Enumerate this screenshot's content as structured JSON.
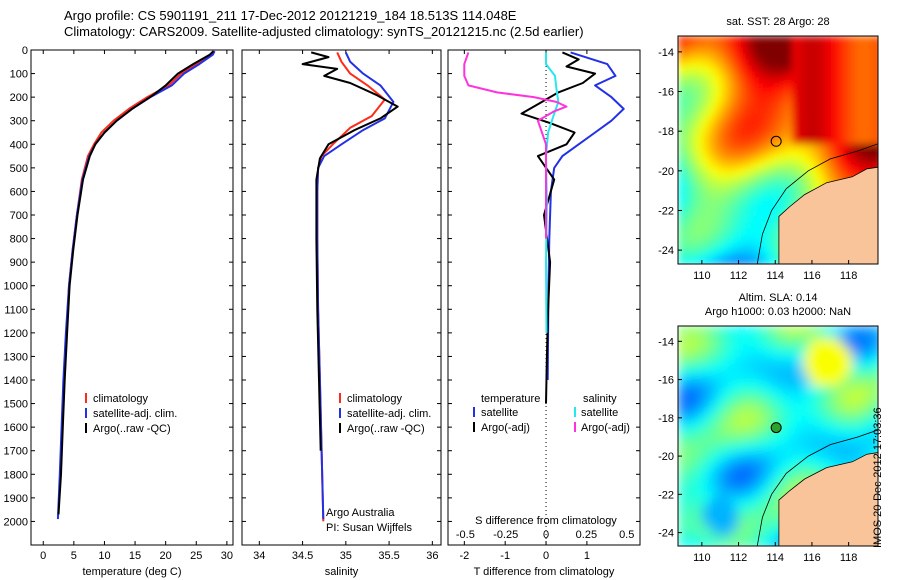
{
  "header": {
    "line1": "Argo profile: CS 5901191_211 17-Dec-2012 20121219_184 18.513S 114.048E",
    "line2": "Climatology: CARS2009. Satellite-adjusted climatology: synTS_20121215.nc (2.5d earlier)"
  },
  "stamp": "IMOS 20-Dec-2012 17:03:36",
  "colors": {
    "climatology": "#ff2a1a",
    "satellite": "#2330e6",
    "argo": "#000000",
    "argo_salinity_diff": "#ff33dd",
    "satellite_salinity_diff": "#27e6ee",
    "land": "#f9c49a",
    "axis": "#000000"
  },
  "chart_data": [
    {
      "type": "line",
      "id": "temperature",
      "xlabel": "temperature (deg C)",
      "ylabel": "",
      "xlim": [
        -2,
        31
      ],
      "ylim": [
        2100,
        0
      ],
      "xticks": [
        0,
        5,
        10,
        15,
        20,
        25,
        30
      ],
      "yticks": [
        0,
        100,
        200,
        300,
        400,
        500,
        600,
        700,
        800,
        900,
        1000,
        1100,
        1200,
        1300,
        1400,
        1500,
        1600,
        1700,
        1800,
        1900,
        2000
      ],
      "legend": [
        "climatology",
        "satellite-adj. clim.",
        "Argo(..raw -QC)"
      ],
      "legend_position": "lower-center",
      "series": [
        {
          "name": "climatology",
          "color": "#ff2a1a",
          "x": [
            28.0,
            27.3,
            25.0,
            22.5,
            20.5,
            17.0,
            14.0,
            11.5,
            9.5,
            8.3,
            7.3,
            6.3,
            5.5,
            4.8,
            4.2,
            3.8,
            3.4,
            3.1,
            2.8
          ],
          "y": [
            5,
            20,
            60,
            100,
            150,
            200,
            250,
            300,
            350,
            400,
            450,
            550,
            700,
            850,
            1000,
            1200,
            1400,
            1600,
            1800
          ]
        },
        {
          "name": "satellite-adj. clim.",
          "color": "#2330e6",
          "x": [
            28.0,
            27.7,
            25.5,
            23.0,
            21.0,
            17.5,
            14.5,
            12.0,
            10.0,
            8.5,
            7.5,
            6.4,
            5.5,
            4.8,
            4.2,
            3.7,
            3.3,
            3.0,
            2.7,
            2.4
          ],
          "y": [
            5,
            20,
            60,
            100,
            150,
            200,
            250,
            300,
            350,
            400,
            450,
            550,
            700,
            850,
            1000,
            1200,
            1400,
            1600,
            1800,
            1990
          ]
        },
        {
          "name": "Argo(..raw -QC)",
          "color": "#000000",
          "x": [
            27.8,
            27.2,
            24.5,
            22.0,
            20.0,
            18.0,
            14.5,
            12.0,
            10.0,
            8.5,
            7.6,
            6.5,
            5.6,
            4.9,
            4.3,
            3.9,
            3.5,
            3.2,
            2.9,
            2.5
          ],
          "y": [
            5,
            20,
            60,
            100,
            150,
            190,
            250,
            300,
            350,
            400,
            450,
            550,
            700,
            850,
            1000,
            1200,
            1400,
            1600,
            1800,
            1970
          ]
        }
      ]
    },
    {
      "type": "line",
      "id": "salinity",
      "xlabel": "salinity",
      "xlim": [
        33.8,
        36.1
      ],
      "ylim": [
        2100,
        0
      ],
      "xticks": [
        34,
        34.5,
        35,
        35.5,
        36
      ],
      "xtick_labels": [
        "34",
        "34.5",
        "35",
        "35.5",
        "36"
      ],
      "legend": [
        "climatology",
        "satellite-adj. clim.",
        "Argo(..raw -QC)"
      ],
      "legend_position": "lower-center",
      "annotation": [
        "Argo Australia",
        "PI: Susan Wijffels"
      ],
      "series": [
        {
          "name": "climatology",
          "color": "#ff2a1a",
          "x": [
            34.9,
            34.95,
            35.05,
            35.25,
            35.45,
            35.3,
            35.05,
            34.85,
            34.72,
            34.68,
            34.67,
            34.67,
            34.68,
            34.7,
            34.72,
            34.74
          ],
          "y": [
            10,
            50,
            100,
            150,
            210,
            280,
            330,
            400,
            450,
            500,
            600,
            800,
            1100,
            1400,
            1700,
            2000
          ]
        },
        {
          "name": "satellite-adj. clim.",
          "color": "#2330e6",
          "x": [
            35.0,
            35.05,
            35.2,
            35.4,
            35.55,
            35.45,
            35.2,
            34.95,
            34.75,
            34.68,
            34.67,
            34.67,
            34.68,
            34.7,
            34.72,
            34.74
          ],
          "y": [
            10,
            50,
            100,
            150,
            220,
            290,
            340,
            400,
            450,
            500,
            600,
            800,
            1100,
            1400,
            1700,
            1990
          ]
        },
        {
          "name": "Argo(..raw -QC)",
          "color": "#000000",
          "x": [
            34.6,
            34.8,
            34.5,
            34.9,
            34.75,
            35.05,
            35.35,
            35.6,
            35.4,
            35.1,
            34.8,
            34.7,
            34.66,
            34.66,
            34.67,
            34.69,
            34.71
          ],
          "y": [
            10,
            30,
            60,
            80,
            110,
            140,
            190,
            240,
            290,
            340,
            400,
            460,
            550,
            800,
            1100,
            1400,
            1700
          ]
        }
      ]
    },
    {
      "type": "line",
      "id": "difference",
      "xlabel": "T difference from climatology",
      "xlabel_top": "S difference from climatology",
      "xlim": [
        -2.4,
        2.3
      ],
      "ylim": [
        2100,
        0
      ],
      "xticks": [
        -2,
        -1,
        0,
        1
      ],
      "xtick_labels": [
        "-2",
        "-1",
        "0",
        "1"
      ],
      "s_xticks": [
        -0.5,
        -0.25,
        0,
        0.25,
        0.5
      ],
      "s_xtick_labels": [
        "-0.5",
        "-0.25",
        "0",
        "0.25",
        "0.5"
      ],
      "legend_left": {
        "title": "temperature",
        "items": [
          "satellite",
          "Argo(-adj)"
        ]
      },
      "legend_right": {
        "title": "salinity",
        "items": [
          "satellite",
          "Argo(-adj)"
        ]
      },
      "series": [
        {
          "name": "satellite (temperature)",
          "color": "#2330e6",
          "x": [
            0.6,
            1.5,
            1.7,
            1.2,
            1.6,
            1.9,
            1.6,
            1.2,
            0.8,
            0.4,
            0.2,
            0.12,
            0.08,
            0.06,
            0.05,
            0.04
          ],
          "y": [
            10,
            60,
            110,
            150,
            200,
            250,
            300,
            350,
            400,
            450,
            500,
            600,
            800,
            1000,
            1200,
            1400
          ]
        },
        {
          "name": "Argo(-adj) (temperature)",
          "color": "#000000",
          "x": [
            0.4,
            0.8,
            0.5,
            1.2,
            0.9,
            0.3,
            -0.2,
            -0.6,
            0.1,
            0.7,
            0.5,
            -0.2,
            0.2,
            -0.05,
            0.1,
            0.05,
            0.02,
            0.0
          ],
          "y": [
            10,
            40,
            70,
            100,
            140,
            180,
            230,
            270,
            310,
            350,
            400,
            450,
            550,
            700,
            900,
            1100,
            1300,
            1500
          ]
        },
        {
          "name": "satellite (salinity)",
          "color": "#27e6ee",
          "x": [
            0.0,
            0.0,
            0.22,
            0.25,
            0.3,
            0.18,
            0.05,
            0.0,
            0.02,
            0.0,
            0.01
          ],
          "y": [
            10,
            60,
            110,
            160,
            220,
            280,
            350,
            450,
            650,
            900,
            1200
          ]
        },
        {
          "name": "Argo(-adj) (salinity)",
          "color": "#ff33dd",
          "x": [
            -1.9,
            -2.0,
            -2.0,
            -1.9,
            -1.2,
            -0.3,
            0.25,
            0.5,
            0.2,
            -0.2,
            0.0,
            0.0,
            0.0,
            0.0
          ],
          "y": [
            10,
            60,
            110,
            150,
            180,
            200,
            220,
            240,
            260,
            300,
            400,
            500,
            650,
            800
          ]
        }
      ]
    },
    {
      "type": "heatmap",
      "id": "sst_map",
      "title": "sat. SST: 28 Argo: 28",
      "xticks": [
        110,
        112,
        114,
        116,
        118
      ],
      "yticks": [
        -14,
        -16,
        -18,
        -20,
        -22,
        -24
      ],
      "xlim": [
        108.7,
        119.6
      ],
      "ylim": [
        -24.7,
        -13.2
      ],
      "argo_position": [
        114.05,
        -18.51
      ],
      "colorscale": "jet"
    },
    {
      "type": "heatmap",
      "id": "sla_map",
      "title": "Altim. SLA: 0.14",
      "subtitle": "Argo h1000: 0.03 h2000: NaN",
      "xticks": [
        110,
        112,
        114,
        116,
        118
      ],
      "yticks": [
        -14,
        -16,
        -18,
        -20,
        -22,
        -24
      ],
      "xlim": [
        108.7,
        119.6
      ],
      "ylim": [
        -24.7,
        -13.2
      ],
      "argo_position": [
        114.05,
        -18.51
      ],
      "colorscale": "jet"
    }
  ]
}
